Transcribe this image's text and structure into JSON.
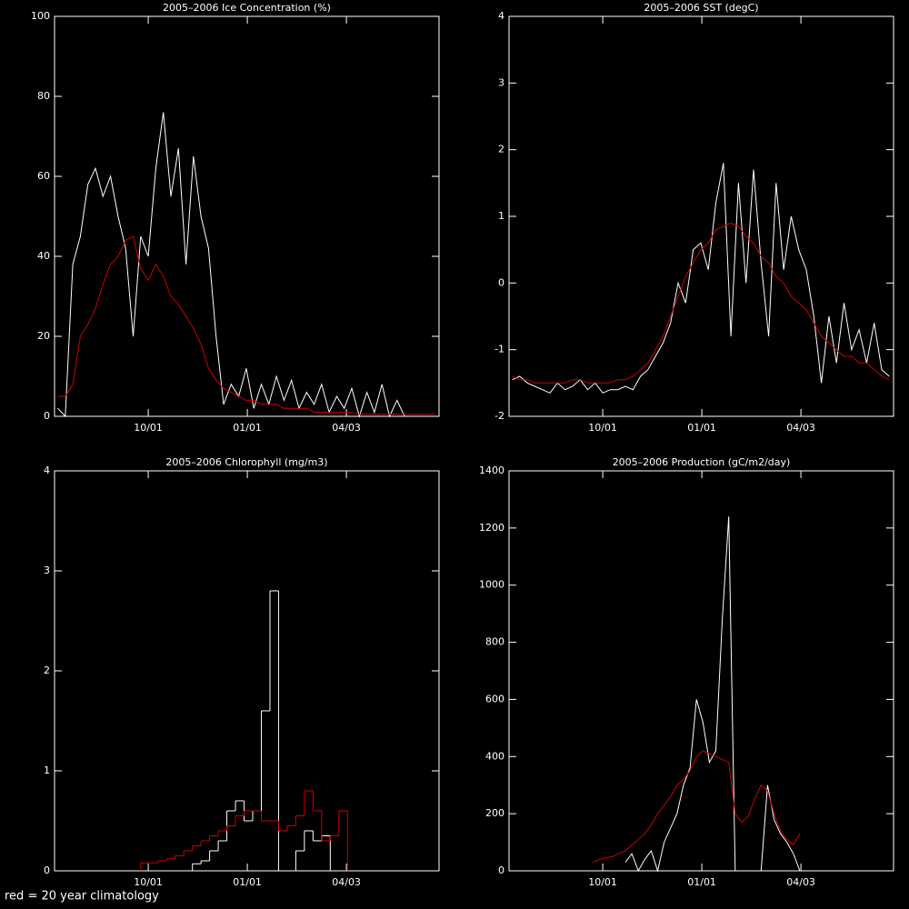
{
  "chart_data": [
    {
      "type": "line",
      "title": "2005–2006 Ice Concentration (%)",
      "x": [
        189,
        196,
        203,
        210,
        217,
        224,
        231,
        238,
        245,
        252,
        259,
        266,
        273,
        280,
        287,
        294,
        301,
        308,
        315,
        322,
        329,
        336,
        343,
        350,
        357,
        364,
        371,
        378,
        385,
        392,
        399,
        406,
        413,
        420,
        427,
        434,
        441,
        448,
        455,
        462,
        469,
        476,
        483,
        490,
        497,
        504,
        511,
        518,
        525,
        532,
        539
      ],
      "series": [
        {
          "color": "#ffffff",
          "values": [
            2,
            0,
            38,
            45,
            58,
            62,
            55,
            60,
            50,
            42,
            20,
            45,
            40,
            62,
            76,
            55,
            67,
            38,
            65,
            50,
            42,
            20,
            3,
            8,
            5,
            12,
            2,
            8,
            3,
            10,
            4,
            9,
            2,
            6,
            3,
            8,
            1,
            5,
            2,
            7,
            0,
            6,
            1,
            8,
            0,
            4,
            0,
            0,
            0,
            0,
            0
          ]
        },
        {
          "color": "#cc0000",
          "values": [
            5,
            5,
            8,
            20,
            23,
            27,
            33,
            38,
            40,
            44,
            45,
            37,
            34,
            38,
            35,
            30,
            28,
            25,
            22,
            18,
            12,
            9,
            7,
            6,
            5,
            4,
            4,
            3,
            3,
            3,
            2,
            2,
            2,
            2,
            1,
            1,
            1,
            1,
            1,
            1,
            0.5,
            0.5,
            0.5,
            0.5,
            0.5,
            0.5,
            0.5,
            0.5,
            0.5,
            0.5,
            0.5
          ]
        }
      ],
      "xlim": [
        186,
        543
      ],
      "xticks": [
        {
          "value": 273,
          "label": "10/01"
        },
        {
          "value": 365,
          "label": "01/01"
        },
        {
          "value": 457,
          "label": "04/03"
        }
      ],
      "ylim": [
        0,
        100
      ],
      "yticks": [
        0,
        20,
        40,
        60,
        80,
        100
      ]
    },
    {
      "type": "line",
      "title": "2005–2006 SST (degC)",
      "x": [
        189,
        196,
        203,
        210,
        217,
        224,
        231,
        238,
        245,
        252,
        259,
        266,
        273,
        280,
        287,
        294,
        301,
        308,
        315,
        322,
        329,
        336,
        343,
        350,
        357,
        364,
        371,
        378,
        385,
        392,
        399,
        406,
        413,
        420,
        427,
        434,
        441,
        448,
        455,
        462,
        469,
        476,
        483,
        490,
        497,
        504,
        511,
        518,
        525,
        532,
        539
      ],
      "series": [
        {
          "color": "#ffffff",
          "values": [
            -1.45,
            -1.4,
            -1.5,
            -1.55,
            -1.6,
            -1.65,
            -1.5,
            -1.6,
            -1.55,
            -1.45,
            -1.6,
            -1.5,
            -1.65,
            -1.6,
            -1.6,
            -1.55,
            -1.6,
            -1.4,
            -1.3,
            -1.1,
            -0.9,
            -0.6,
            0.0,
            -0.3,
            0.5,
            0.6,
            0.2,
            1.2,
            1.8,
            -0.8,
            1.5,
            0.0,
            1.7,
            0.3,
            -0.8,
            1.5,
            0.2,
            1.0,
            0.5,
            0.2,
            -0.5,
            -1.5,
            -0.5,
            -1.2,
            -0.3,
            -1.0,
            -0.7,
            -1.2,
            -0.6,
            -1.3,
            -1.4
          ]
        },
        {
          "color": "#cc0000",
          "values": [
            -1.4,
            -1.45,
            -1.45,
            -1.5,
            -1.5,
            -1.5,
            -1.5,
            -1.5,
            -1.45,
            -1.45,
            -1.5,
            -1.5,
            -1.5,
            -1.5,
            -1.45,
            -1.45,
            -1.4,
            -1.3,
            -1.2,
            -1.0,
            -0.8,
            -0.5,
            -0.2,
            0.1,
            0.3,
            0.5,
            0.6,
            0.8,
            0.85,
            0.9,
            0.85,
            0.7,
            0.6,
            0.4,
            0.3,
            0.1,
            0.0,
            -0.2,
            -0.3,
            -0.4,
            -0.6,
            -0.8,
            -0.9,
            -1.0,
            -1.1,
            -1.1,
            -1.2,
            -1.2,
            -1.3,
            -1.4,
            -1.45
          ]
        }
      ],
      "xlim": [
        186,
        543
      ],
      "xticks": [
        {
          "value": 273,
          "label": "10/01"
        },
        {
          "value": 365,
          "label": "01/01"
        },
        {
          "value": 457,
          "label": "04/03"
        }
      ],
      "ylim": [
        -2,
        4
      ],
      "yticks": [
        -2,
        -1,
        0,
        1,
        2,
        3,
        4
      ]
    },
    {
      "type": "step",
      "title": "2005–2006 Chlorophyll (mg/m3)",
      "x": [
        266,
        274,
        282,
        290,
        298,
        306,
        314,
        322,
        330,
        338,
        346,
        354,
        362,
        370,
        378,
        386,
        394,
        402,
        410,
        418,
        426,
        434,
        442,
        450
      ],
      "series": [
        {
          "color": "#ffffff",
          "values": [
            null,
            null,
            null,
            null,
            null,
            null,
            0.07,
            0.1,
            0.2,
            0.3,
            0.6,
            0.7,
            0.5,
            0.6,
            1.6,
            2.8,
            0,
            0,
            0.2,
            0.4,
            0.3,
            0.35,
            0,
            null
          ]
        },
        {
          "color": "#cc0000",
          "values": [
            0.08,
            0.08,
            0.1,
            0.12,
            0.15,
            0.2,
            0.25,
            0.3,
            0.35,
            0.4,
            0.45,
            0.55,
            0.6,
            0.6,
            0.5,
            0.5,
            0.4,
            0.45,
            0.55,
            0.8,
            0.6,
            0.3,
            0.35,
            0.6
          ]
        }
      ],
      "xlim": [
        186,
        543
      ],
      "xticks": [
        {
          "value": 273,
          "label": "10/01"
        },
        {
          "value": 365,
          "label": "01/01"
        },
        {
          "value": 457,
          "label": "04/03"
        }
      ],
      "ylim": [
        0,
        4
      ],
      "yticks": [
        0,
        1,
        2,
        3,
        4
      ]
    },
    {
      "type": "line",
      "title": "2005–2006 Production (gC/m2/day)",
      "x": [
        264,
        270,
        276,
        282,
        288,
        294,
        300,
        306,
        312,
        318,
        324,
        330,
        336,
        342,
        348,
        354,
        360,
        366,
        372,
        378,
        384,
        390,
        396,
        402,
        408,
        414,
        420,
        426,
        432,
        438,
        444,
        450,
        456
      ],
      "series": [
        {
          "color": "#ffffff",
          "values": [
            null,
            null,
            null,
            null,
            null,
            30,
            60,
            0,
            40,
            70,
            0,
            100,
            150,
            200,
            300,
            360,
            600,
            520,
            380,
            420,
            880,
            1240,
            0,
            0,
            0,
            0,
            0,
            300,
            180,
            130,
            100,
            60,
            0
          ]
        },
        {
          "color": "#cc0000",
          "values": [
            30,
            40,
            45,
            50,
            60,
            70,
            90,
            110,
            130,
            160,
            200,
            230,
            260,
            300,
            320,
            350,
            400,
            420,
            410,
            400,
            390,
            380,
            200,
            170,
            190,
            250,
            300,
            280,
            200,
            140,
            110,
            90,
            130
          ]
        }
      ],
      "xlim": [
        186,
        543
      ],
      "xticks": [
        {
          "value": 273,
          "label": "10/01"
        },
        {
          "value": 365,
          "label": "01/01"
        },
        {
          "value": 457,
          "label": "04/03"
        }
      ],
      "ylim": [
        0,
        1400
      ],
      "yticks": [
        0,
        200,
        400,
        600,
        800,
        1000,
        1200,
        1400
      ]
    }
  ],
  "footnote": "red = 20 year climatology"
}
